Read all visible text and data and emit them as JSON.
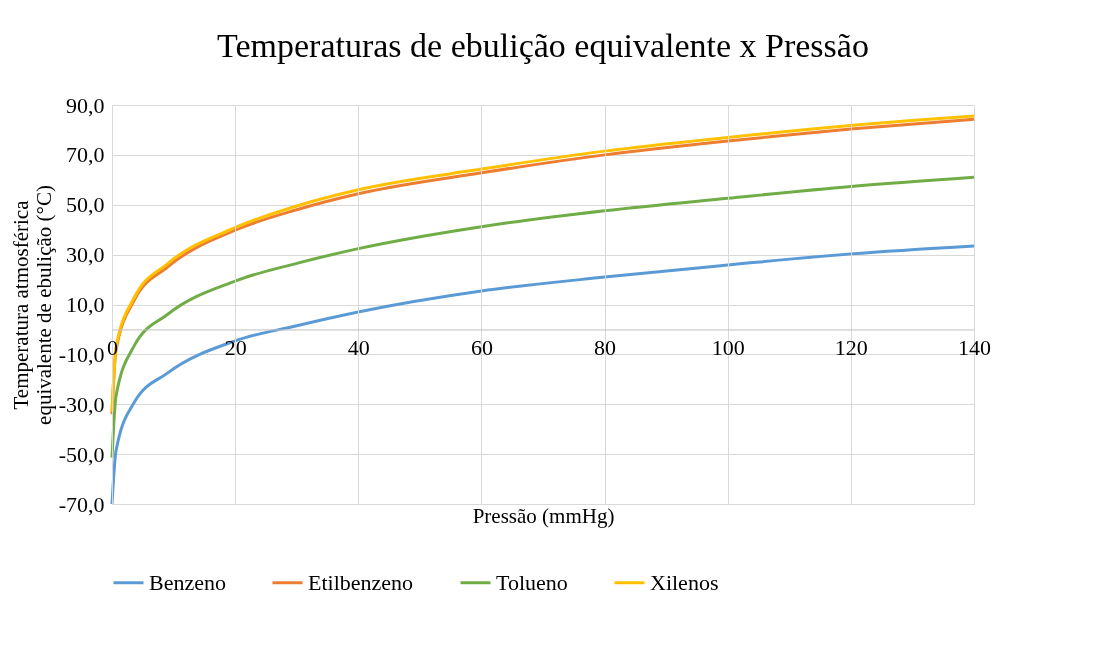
{
  "chart_data": {
    "type": "line",
    "title": "Temperaturas de ebulição equivalente x Pressão",
    "xlabel": "Pressão (mmHg)",
    "ylabel": "Temperatura atmosférica equivalente de ebulição (°C)",
    "x": [
      0,
      0.65,
      3.6,
      9,
      20,
      30,
      40,
      60,
      80,
      100,
      120,
      140
    ],
    "series": [
      {
        "name": "Benzeno",
        "color": "#5b9bd5",
        "values": [
          -70,
          -48.7,
          -29.3,
          -17.5,
          -4.6,
          1.5,
          7,
          15.4,
          21,
          25.8,
          30.3,
          33.5
        ]
      },
      {
        "name": "Etilbenzeno",
        "color": "#ed7d31",
        "values": [
          -34,
          -8.3,
          11.7,
          25,
          39.8,
          48,
          54.4,
          62.8,
          70,
          75.6,
          80.4,
          84.3
        ]
      },
      {
        "name": "Tolueno",
        "color": "#70ad47",
        "values": [
          -51.4,
          -26.7,
          -6.6,
          6,
          19.4,
          26.5,
          32.4,
          41.2,
          47.6,
          52.6,
          57.3,
          61
        ]
      },
      {
        "name": "Xilenos",
        "color": "#ffc000",
        "values": [
          -33,
          -7.3,
          12.7,
          26.3,
          40.8,
          49.5,
          56,
          64.3,
          71.5,
          77,
          81.8,
          85.6
        ]
      }
    ],
    "xlim": [
      0,
      140
    ],
    "xticks": [
      0,
      20,
      40,
      60,
      80,
      100,
      120,
      140
    ],
    "ylim": [
      -70,
      90
    ],
    "yticks": [
      {
        "value": -70,
        "label": "-70,0"
      },
      {
        "value": -50,
        "label": "-50,0"
      },
      {
        "value": -30,
        "label": "-30,0"
      },
      {
        "value": -10,
        "label": "-10,0"
      },
      {
        "value": 10,
        "label": "10,0"
      },
      {
        "value": 30,
        "label": "30,0"
      },
      {
        "value": 50,
        "label": "50,0"
      },
      {
        "value": 70,
        "label": "70,0"
      },
      {
        "value": 90,
        "label": "90,0"
      }
    ],
    "grid": true,
    "legend": "bottom",
    "marker": "none",
    "line_style": "solid"
  }
}
